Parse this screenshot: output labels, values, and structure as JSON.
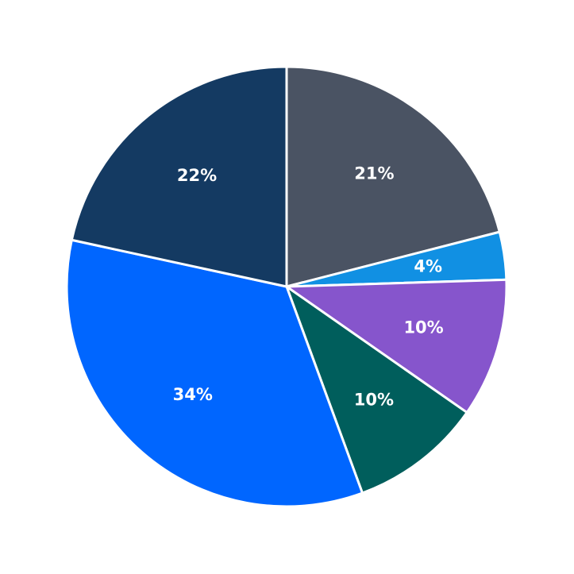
{
  "chart_data": {
    "type": "pie",
    "start": "top",
    "direction": "clockwise",
    "slices": [
      {
        "value": 21.0,
        "label": "21%",
        "color": "#4a5363"
      },
      {
        "value": 3.5,
        "label": "4%",
        "color": "#1190e3"
      },
      {
        "value": 10.2,
        "label": "10%",
        "color": "#8655cc"
      },
      {
        "value": 9.7,
        "label": "10%",
        "color": "#005e5c"
      },
      {
        "value": 34.0,
        "label": "34%",
        "color": "#0066ff"
      },
      {
        "value": 21.6,
        "label": "22%",
        "color": "#143a62"
      }
    ],
    "legend": "none"
  }
}
